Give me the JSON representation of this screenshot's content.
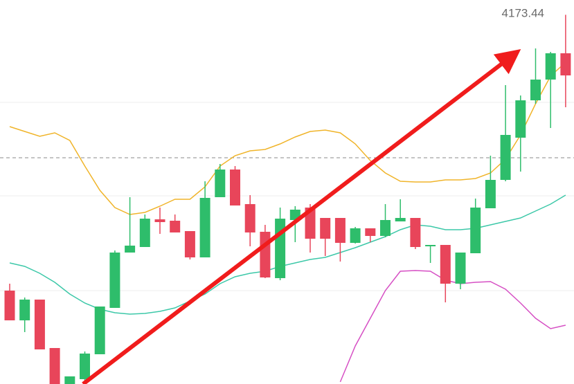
{
  "chart_data": {
    "type": "candlestick",
    "ylim": [
      3960,
      4182
    ],
    "high_label": 4173.44,
    "up_color": "#2ebd6b",
    "down_color": "#e8455a",
    "candles": {
      "open": [
        4014,
        3996.8,
        4008.8,
        3980.8,
        3960,
        3962.8,
        3977.2,
        4004,
        4036,
        4039.2,
        4055.2,
        4054.4,
        4048.4,
        4033.2,
        4068,
        4084,
        4064,
        4048,
        4021.2,
        4054.8,
        4062,
        4056,
        4056,
        4041.6,
        4050,
        4045.6,
        4054,
        4056,
        4039.6,
        4040.4,
        4018,
        4035.6,
        4061.6,
        4078,
        4102.4,
        4124,
        4136,
        4151.2
      ],
      "high": [
        4018,
        4010,
        4008.8,
        3980.8,
        3964.4,
        3978.8,
        4004.8,
        4037.2,
        4068,
        4058,
        4062,
        4058,
        4048.4,
        4077.2,
        4087.2,
        4086,
        4069.2,
        4052,
        4062,
        4062.8,
        4064,
        4056,
        4056,
        4050.8,
        4050,
        4064,
        4066.8,
        4056,
        4040.4,
        4040.4,
        4036,
        4067.2,
        4092,
        4132.8,
        4126.8,
        4154,
        4152,
        4173.44
      ],
      "low": [
        3996.8,
        3990,
        3980,
        3960,
        3960,
        3962,
        3977.2,
        4004,
        4036,
        4039.2,
        4046.8,
        4047.6,
        4032,
        4033.2,
        4068,
        4063.2,
        4039.6,
        4021.2,
        4020,
        4042,
        4036,
        4034,
        4030.8,
        4041.2,
        4042,
        4044.8,
        4054,
        4038,
        4030,
        4007.2,
        4014.8,
        4035.6,
        4061.6,
        4077.2,
        4082.8,
        4122,
        4108,
        4120
      ],
      "close": [
        3996.8,
        4008.8,
        3980,
        3960,
        3964.4,
        3977.6,
        4004.8,
        4036,
        4040,
        4055.6,
        4053.6,
        4047.6,
        4033.2,
        4067.6,
        4084,
        4063.2,
        4047.6,
        4021.6,
        4055.6,
        4060.8,
        4044,
        4044,
        4041.6,
        4050,
        4045.6,
        4054.8,
        4056,
        4039.2,
        4040.4,
        4018,
        4036,
        4062,
        4078,
        4104,
        4124,
        4136,
        4151.2,
        4138.4
      ]
    },
    "lines": [
      {
        "color": "#f0b429",
        "values": [
          4108.8,
          4106,
          4103.2,
          4105.2,
          4100.8,
          4086,
          4072,
          4062,
          4058,
          4059.2,
          4062.8,
          4066.8,
          4066.8,
          4074,
          4086,
          4092,
          4094.8,
          4095.6,
          4098.8,
          4102.8,
          4106,
          4106.8,
          4105.2,
          4098.8,
          4089.2,
          4082,
          4077.2,
          4076.8,
          4076.8,
          4078,
          4078,
          4078.8,
          4082,
          4090,
          4104,
          4122,
          4138,
          4146
        ]
      },
      {
        "color": "#3cc8a8",
        "values": [
          4030,
          4028,
          4024,
          4018.8,
          4012,
          4006.8,
          4003.2,
          4001.2,
          4000.4,
          4000.8,
          4002,
          4004,
          4008,
          4012,
          4018,
          4022,
          4024,
          4025.2,
          4028,
          4030,
          4032,
          4033.2,
          4036,
          4038.8,
          4042,
          4045.2,
          4049.2,
          4052,
          4051.2,
          4049.2,
          4049.2,
          4050,
          4052,
          4054,
          4056,
          4060,
          4064,
          4069.2
        ]
      },
      {
        "color": "#d64fc4",
        "values": [
          null,
          null,
          null,
          null,
          null,
          null,
          null,
          null,
          null,
          null,
          null,
          null,
          null,
          null,
          null,
          null,
          null,
          null,
          null,
          null,
          null,
          null,
          3961.2,
          3982,
          3998,
          4014,
          4025.2,
          4025.6,
          4025.2,
          4020,
          4018,
          4018.8,
          4019.2,
          4014.8,
          4006.8,
          3998,
          3992,
          3994
        ]
      }
    ],
    "grid_levels": [
      4122.8,
      4068.8,
      4014
    ],
    "dashed_level": 4090.8
  }
}
